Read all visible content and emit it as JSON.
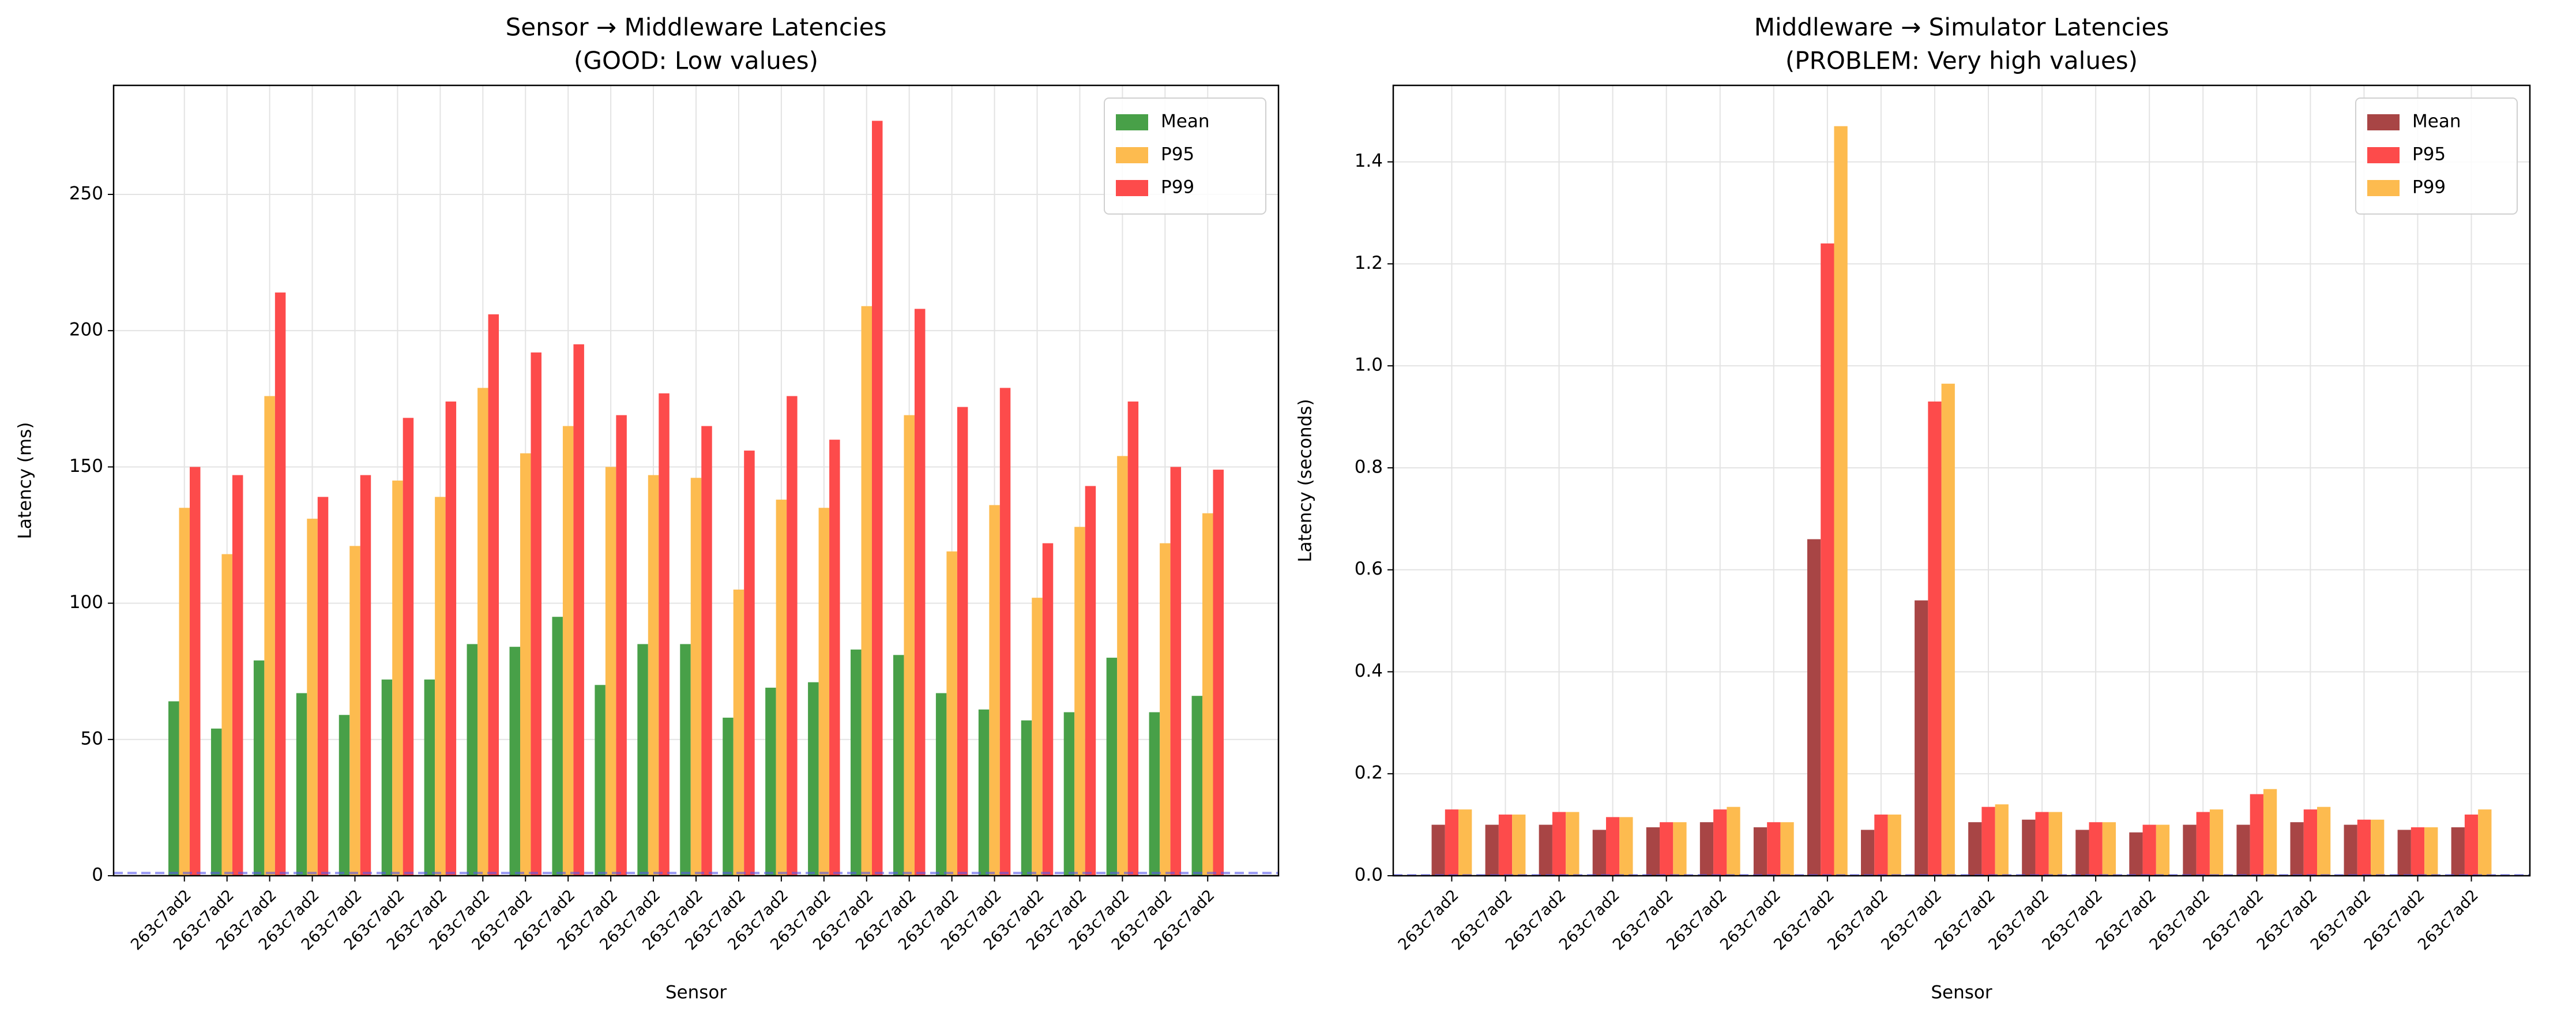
{
  "chart_data": [
    {
      "type": "bar",
      "title": "Sensor → Middleware Latencies",
      "subtitle": "(GOOD: Low values)",
      "xlabel": "Sensor",
      "ylabel": "Latency (ms)",
      "categories": [
        "263c7ad2",
        "263c7ad2",
        "263c7ad2",
        "263c7ad2",
        "263c7ad2",
        "263c7ad2",
        "263c7ad2",
        "263c7ad2",
        "263c7ad2",
        "263c7ad2",
        "263c7ad2",
        "263c7ad2",
        "263c7ad2",
        "263c7ad2",
        "263c7ad2",
        "263c7ad2",
        "263c7ad2",
        "263c7ad2",
        "263c7ad2",
        "263c7ad2",
        "263c7ad2",
        "263c7ad2",
        "263c7ad2",
        "263c7ad2",
        "263c7ad2"
      ],
      "series": [
        {
          "name": "Mean",
          "color": "#48a048",
          "values": [
            64,
            54,
            79,
            67,
            59,
            72,
            72,
            85,
            84,
            95,
            70,
            85,
            85,
            58,
            69,
            71,
            83,
            81,
            67,
            61,
            57,
            60,
            80,
            60,
            66
          ]
        },
        {
          "name": "P95",
          "color": "#fdbb4f",
          "values": [
            135,
            118,
            176,
            131,
            121,
            145,
            139,
            179,
            155,
            165,
            150,
            147,
            146,
            105,
            138,
            135,
            209,
            169,
            119,
            136,
            102,
            128,
            154,
            122,
            133
          ]
        },
        {
          "name": "P99",
          "color": "#fd4b4b",
          "values": [
            150,
            147,
            214,
            139,
            147,
            168,
            174,
            206,
            192,
            195,
            169,
            177,
            165,
            156,
            176,
            160,
            277,
            208,
            172,
            179,
            122,
            143,
            174,
            150,
            149
          ]
        }
      ],
      "reference_line": {
        "value": 1,
        "color": "#5555ee"
      },
      "ylim": [
        0,
        290
      ],
      "yticks": [
        0,
        50,
        100,
        150,
        200,
        250
      ],
      "grid": true,
      "legend": "upper right"
    },
    {
      "type": "bar",
      "title": "Middleware → Simulator Latencies",
      "subtitle": "(PROBLEM: Very high values)",
      "xlabel": "Sensor",
      "ylabel": "Latency (seconds)",
      "categories": [
        "263c7ad2",
        "263c7ad2",
        "263c7ad2",
        "263c7ad2",
        "263c7ad2",
        "263c7ad2",
        "263c7ad2",
        "263c7ad2",
        "263c7ad2",
        "263c7ad2",
        "263c7ad2",
        "263c7ad2",
        "263c7ad2",
        "263c7ad2",
        "263c7ad2",
        "263c7ad2",
        "263c7ad2",
        "263c7ad2",
        "263c7ad2",
        "263c7ad2"
      ],
      "series": [
        {
          "name": "Mean",
          "color": "#a84545",
          "values": [
            0.1,
            0.1,
            0.1,
            0.09,
            0.095,
            0.105,
            0.095,
            0.66,
            0.09,
            0.54,
            0.105,
            0.11,
            0.09,
            0.085,
            0.1,
            0.1,
            0.105,
            0.1,
            0.09,
            0.095
          ]
        },
        {
          "name": "P95",
          "color": "#fd4b4b",
          "values": [
            0.13,
            0.12,
            0.125,
            0.115,
            0.105,
            0.13,
            0.105,
            1.24,
            0.12,
            0.93,
            0.135,
            0.125,
            0.105,
            0.1,
            0.125,
            0.16,
            0.13,
            0.11,
            0.095,
            0.12
          ]
        },
        {
          "name": "P99",
          "color": "#fdbb4f",
          "values": [
            0.13,
            0.12,
            0.125,
            0.115,
            0.105,
            0.135,
            0.105,
            1.47,
            0.12,
            0.965,
            0.14,
            0.125,
            0.105,
            0.1,
            0.13,
            0.17,
            0.135,
            0.11,
            0.095,
            0.13
          ]
        }
      ],
      "reference_line": {
        "value": 0.001,
        "color": "#5555ee"
      },
      "ylim": [
        0,
        1.55
      ],
      "yticks": [
        {
          "value": 0,
          "label": "0.0"
        },
        0.2,
        0.4,
        0.6,
        0.8,
        {
          "value": 1,
          "label": "1.0"
        },
        1.2,
        1.4
      ],
      "grid": true,
      "legend": "upper right"
    }
  ]
}
